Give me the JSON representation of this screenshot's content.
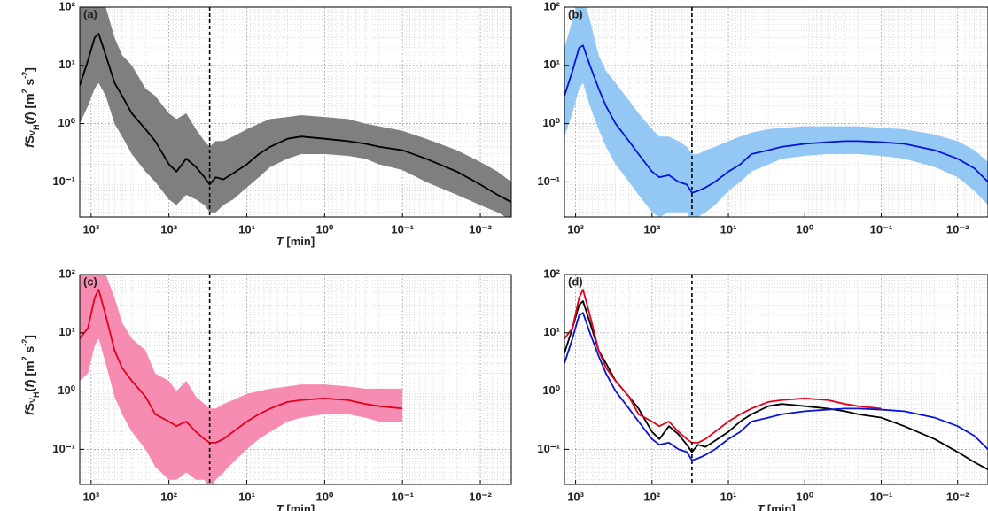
{
  "chart_data": [
    {
      "type": "line",
      "title": "(a)",
      "xlabel": [
        "T",
        " [min]"
      ],
      "ylabel": [
        "f",
        "S",
        "V",
        "H",
        "(",
        "f",
        ") [m",
        "2",
        " s",
        "-2",
        "]"
      ],
      "x": [
        1400,
        1100,
        900,
        800,
        650,
        500,
        400,
        300,
        200,
        150,
        100,
        80,
        60,
        45,
        35,
        30,
        25,
        20,
        15,
        10,
        7,
        5,
        3,
        2,
        1,
        0.5,
        0.3,
        0.2,
        0.1,
        0.05,
        0.02,
        0.01,
        0.006,
        0.004
      ],
      "xlim": [
        1400,
        0.004
      ],
      "ylim": [
        0.025,
        100
      ],
      "log_x": true,
      "log_y": true,
      "grid": true,
      "vline": 30,
      "xticks": [
        {
          "value": 1000,
          "label": "10³"
        },
        {
          "value": 100,
          "label": "10²"
        },
        {
          "value": 10,
          "label": "10¹"
        },
        {
          "value": 1,
          "label": "10⁰"
        },
        {
          "value": 0.1,
          "label": "10⁻¹"
        },
        {
          "value": 0.01,
          "label": "10⁻²"
        }
      ],
      "yticks": [
        {
          "value": 100,
          "label": "10²"
        },
        {
          "value": 10,
          "label": "10¹"
        },
        {
          "value": 1,
          "label": "10⁰"
        },
        {
          "value": 0.1,
          "label": "10⁻¹"
        }
      ],
      "series": [
        {
          "color": "#000000",
          "band_color": "#7f7f7f",
          "values": [
            4.5,
            12,
            30,
            35,
            15,
            5,
            3,
            1.5,
            0.8,
            0.5,
            0.2,
            0.15,
            0.25,
            0.18,
            0.12,
            0.09,
            0.12,
            0.11,
            0.14,
            0.2,
            0.3,
            0.4,
            0.55,
            0.6,
            0.55,
            0.5,
            0.45,
            0.4,
            0.35,
            0.25,
            0.15,
            0.09,
            0.06,
            0.045
          ],
          "band_lower": [
            1,
            2,
            4,
            5,
            3,
            1,
            0.6,
            0.3,
            0.15,
            0.1,
            0.05,
            0.04,
            0.06,
            0.05,
            0.04,
            0.03,
            0.03,
            0.04,
            0.05,
            0.08,
            0.12,
            0.18,
            0.25,
            0.3,
            0.3,
            0.28,
            0.25,
            0.2,
            0.16,
            0.1,
            0.06,
            0.04,
            0.03,
            0.022
          ],
          "band_upper": [
            100,
            150,
            200,
            200,
            100,
            30,
            15,
            10,
            4,
            3,
            1.5,
            1.2,
            1.5,
            0.8,
            0.5,
            0.4,
            0.5,
            0.5,
            0.6,
            0.8,
            1,
            1.2,
            1.3,
            1.4,
            1.3,
            1.2,
            1.0,
            0.9,
            0.75,
            0.55,
            0.35,
            0.22,
            0.15,
            0.1
          ]
        }
      ]
    },
    {
      "type": "line",
      "title": "(b)",
      "x": [
        1400,
        1100,
        900,
        800,
        650,
        500,
        400,
        300,
        200,
        150,
        100,
        80,
        60,
        45,
        35,
        30,
        25,
        20,
        15,
        10,
        7,
        5,
        3,
        2,
        1,
        0.5,
        0.3,
        0.2,
        0.1,
        0.05,
        0.02,
        0.01,
        0.006,
        0.004
      ],
      "xlim": [
        1400,
        0.004
      ],
      "ylim": [
        0.025,
        100
      ],
      "log_x": true,
      "log_y": true,
      "grid": true,
      "vline": 30,
      "xticks": [
        {
          "value": 1000,
          "label": "10³"
        },
        {
          "value": 100,
          "label": "10²"
        },
        {
          "value": 10,
          "label": "10¹"
        },
        {
          "value": 1,
          "label": "10⁰"
        },
        {
          "value": 0.1,
          "label": "10⁻¹"
        },
        {
          "value": 0.01,
          "label": "10⁻²"
        }
      ],
      "yticks": [
        {
          "value": 100,
          "label": "10²"
        },
        {
          "value": 10,
          "label": "10¹"
        },
        {
          "value": 1,
          "label": "10⁰"
        },
        {
          "value": 0.1,
          "label": "10⁻¹"
        }
      ],
      "series": [
        {
          "color": "#0a14d6",
          "band_color": "#93c8f5",
          "values": [
            3,
            8,
            20,
            22,
            10,
            4,
            2,
            1,
            0.5,
            0.3,
            0.15,
            0.12,
            0.13,
            0.1,
            0.09,
            0.065,
            0.07,
            0.08,
            0.1,
            0.15,
            0.2,
            0.3,
            0.35,
            0.4,
            0.45,
            0.48,
            0.5,
            0.5,
            0.48,
            0.45,
            0.35,
            0.25,
            0.17,
            0.1
          ],
          "band_lower": [
            0.6,
            1.5,
            4,
            5,
            2,
            0.8,
            0.4,
            0.2,
            0.1,
            0.06,
            0.03,
            0.025,
            0.03,
            0.03,
            0.03,
            0.02,
            0.025,
            0.03,
            0.04,
            0.07,
            0.1,
            0.15,
            0.2,
            0.25,
            0.28,
            0.3,
            0.3,
            0.3,
            0.28,
            0.25,
            0.18,
            0.12,
            0.07,
            0.04
          ],
          "band_upper": [
            20,
            60,
            150,
            150,
            60,
            15,
            8,
            5,
            2.5,
            1.5,
            0.8,
            0.6,
            0.6,
            0.5,
            0.4,
            0.3,
            0.3,
            0.35,
            0.4,
            0.5,
            0.6,
            0.7,
            0.8,
            0.85,
            0.9,
            0.9,
            0.9,
            0.9,
            0.85,
            0.8,
            0.65,
            0.5,
            0.35,
            0.22
          ]
        }
      ]
    },
    {
      "type": "line",
      "title": "(c)",
      "xlabel": [
        "T",
        " [min]"
      ],
      "ylabel": [
        "f",
        "S",
        "V",
        "H",
        "(",
        "f",
        ") [m",
        "2",
        " s",
        "-2",
        "]"
      ],
      "x": [
        1400,
        1100,
        900,
        800,
        650,
        500,
        400,
        300,
        200,
        150,
        100,
        80,
        60,
        45,
        35,
        30,
        25,
        20,
        15,
        10,
        7,
        5,
        3,
        2,
        1,
        0.5,
        0.3,
        0.2,
        0.1,
        0.05,
        0.02,
        0.01,
        0.006,
        0.004
      ],
      "xlim": [
        1400,
        0.004
      ],
      "ylim": [
        0.025,
        100
      ],
      "log_x": true,
      "log_y": true,
      "grid": true,
      "vline": 30,
      "xticks": [
        {
          "value": 1000,
          "label": "10³"
        },
        {
          "value": 100,
          "label": "10²"
        },
        {
          "value": 10,
          "label": "10¹"
        },
        {
          "value": 1,
          "label": "10⁰"
        },
        {
          "value": 0.1,
          "label": "10⁻¹"
        },
        {
          "value": 0.01,
          "label": "10⁻²"
        }
      ],
      "yticks": [
        {
          "value": 100,
          "label": "10²"
        },
        {
          "value": 10,
          "label": "10¹"
        },
        {
          "value": 1,
          "label": "10⁰"
        },
        {
          "value": 0.1,
          "label": "10⁻¹"
        }
      ],
      "series": [
        {
          "color": "#e3001b",
          "band_color": "#f78cb2",
          "values": [
            8,
            12,
            40,
            55,
            20,
            5,
            2.5,
            1.5,
            0.8,
            0.4,
            0.3,
            0.25,
            0.3,
            0.2,
            0.15,
            0.13,
            0.13,
            0.15,
            0.2,
            0.3,
            0.4,
            0.5,
            0.65,
            0.7,
            0.75,
            0.7,
            0.6,
            0.55,
            0.5,
            null,
            null,
            null,
            null,
            null
          ],
          "band_lower": [
            1.5,
            2,
            6,
            8,
            3,
            0.8,
            0.4,
            0.2,
            0.1,
            0.05,
            0.03,
            0.03,
            0.04,
            0.03,
            0.03,
            0.02,
            0.03,
            0.04,
            0.06,
            0.1,
            0.15,
            0.2,
            0.3,
            0.35,
            0.4,
            0.4,
            0.35,
            0.3,
            0.3,
            null,
            null,
            null,
            null,
            null
          ],
          "band_upper": [
            100,
            150,
            300,
            300,
            100,
            40,
            15,
            8,
            5,
            2,
            1.5,
            1,
            1.5,
            0.8,
            0.6,
            0.5,
            0.5,
            0.6,
            0.7,
            0.9,
            1,
            1.1,
            1.2,
            1.3,
            1.3,
            1.2,
            1.1,
            1.1,
            1.1,
            null,
            null,
            null,
            null,
            null
          ]
        }
      ]
    },
    {
      "type": "line",
      "title": "(d)",
      "xlabel": [
        "T",
        " [min]"
      ],
      "x": [
        1400,
        1100,
        900,
        800,
        650,
        500,
        400,
        300,
        200,
        150,
        100,
        80,
        60,
        45,
        35,
        30,
        25,
        20,
        15,
        10,
        7,
        5,
        3,
        2,
        1,
        0.5,
        0.3,
        0.2,
        0.1,
        0.05,
        0.02,
        0.01,
        0.006,
        0.004
      ],
      "xlim": [
        1400,
        0.004
      ],
      "ylim": [
        0.025,
        100
      ],
      "log_x": true,
      "log_y": true,
      "grid": true,
      "vline": 30,
      "xticks": [
        {
          "value": 1000,
          "label": "10³"
        },
        {
          "value": 100,
          "label": "10²"
        },
        {
          "value": 10,
          "label": "10¹"
        },
        {
          "value": 1,
          "label": "10⁰"
        },
        {
          "value": 0.1,
          "label": "10⁻¹"
        },
        {
          "value": 0.01,
          "label": "10⁻²"
        }
      ],
      "yticks": [
        {
          "value": 100,
          "label": "10²"
        },
        {
          "value": 10,
          "label": "10¹"
        },
        {
          "value": 1,
          "label": "10⁰"
        },
        {
          "value": 0.1,
          "label": "10⁻¹"
        }
      ],
      "series": [
        {
          "color": "#000000",
          "values": [
            4.5,
            12,
            30,
            35,
            15,
            5,
            3,
            1.5,
            0.8,
            0.5,
            0.2,
            0.15,
            0.25,
            0.18,
            0.12,
            0.09,
            0.12,
            0.11,
            0.14,
            0.2,
            0.3,
            0.4,
            0.55,
            0.6,
            0.55,
            0.5,
            0.45,
            0.4,
            0.35,
            0.25,
            0.15,
            0.09,
            0.06,
            0.045
          ]
        },
        {
          "color": "#e3001b",
          "values": [
            8,
            12,
            40,
            55,
            20,
            5,
            2.5,
            1.5,
            0.8,
            0.4,
            0.3,
            0.25,
            0.3,
            0.2,
            0.15,
            0.13,
            0.13,
            0.15,
            0.2,
            0.3,
            0.4,
            0.5,
            0.65,
            0.7,
            0.75,
            0.7,
            0.6,
            0.55,
            0.5,
            null,
            null,
            null,
            null,
            null
          ]
        },
        {
          "color": "#0a14d6",
          "values": [
            3,
            8,
            20,
            22,
            10,
            4,
            2,
            1,
            0.5,
            0.3,
            0.15,
            0.12,
            0.13,
            0.1,
            0.09,
            0.065,
            0.07,
            0.08,
            0.1,
            0.15,
            0.2,
            0.3,
            0.35,
            0.4,
            0.45,
            0.48,
            0.5,
            0.5,
            0.48,
            0.45,
            0.35,
            0.25,
            0.17,
            0.1
          ]
        }
      ]
    }
  ]
}
